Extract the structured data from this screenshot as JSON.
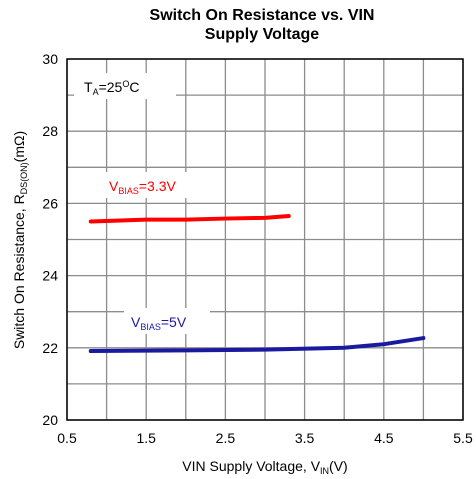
{
  "chart_data": {
    "type": "line",
    "title": [
      "Switch On Resistance vs. VIN",
      "Supply Voltage"
    ],
    "x_label": [
      "VIN Supply Voltage, V",
      "IN",
      "(V)"
    ],
    "y_label": [
      "Switch On Resistance, R",
      "DS(ON)",
      "(mΩ)"
    ],
    "annotations": {
      "temperature": [
        "T",
        "A",
        "=25",
        "O",
        "C"
      ],
      "bias_low": [
        "V",
        "BIAS",
        "=3.3V"
      ],
      "bias_high": [
        "V",
        "BIAS",
        "=5V"
      ]
    },
    "xlim": [
      0.5,
      5.5
    ],
    "xticks": [
      0.5,
      1.5,
      2.5,
      3.5,
      4.5,
      5.5
    ],
    "xminor": [
      1,
      2,
      3,
      4,
      5
    ],
    "ylim": [
      20,
      30
    ],
    "yticks": [
      20,
      22,
      24,
      26,
      28,
      30
    ],
    "yminor": [
      21,
      23,
      25,
      27,
      29
    ],
    "grid": true,
    "series": [
      {
        "name": "VBIAS=3.3V",
        "color": "#ff0000",
        "x": [
          0.8,
          1.5,
          2,
          2.5,
          3,
          3.3
        ],
        "values": [
          25.5,
          25.55,
          25.55,
          25.58,
          25.6,
          25.65
        ]
      },
      {
        "name": "VBIAS=5V",
        "color": "#1a1aa0",
        "x": [
          0.8,
          2,
          3,
          4,
          4.5,
          5
        ],
        "values": [
          21.91,
          21.93,
          21.95,
          22.0,
          22.1,
          22.27
        ]
      }
    ]
  }
}
